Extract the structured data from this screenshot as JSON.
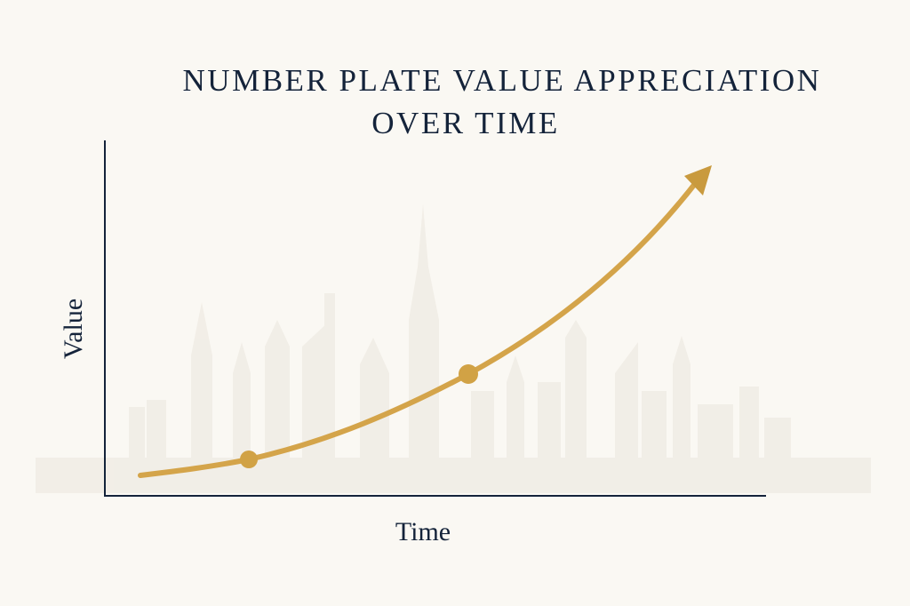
{
  "title": {
    "lines": [
      "NUMBER PLATE VALUE APPRECIATION",
      "OVER TIME"
    ]
  },
  "axes": {
    "x_label": "Time",
    "y_label": "Value"
  }
}
